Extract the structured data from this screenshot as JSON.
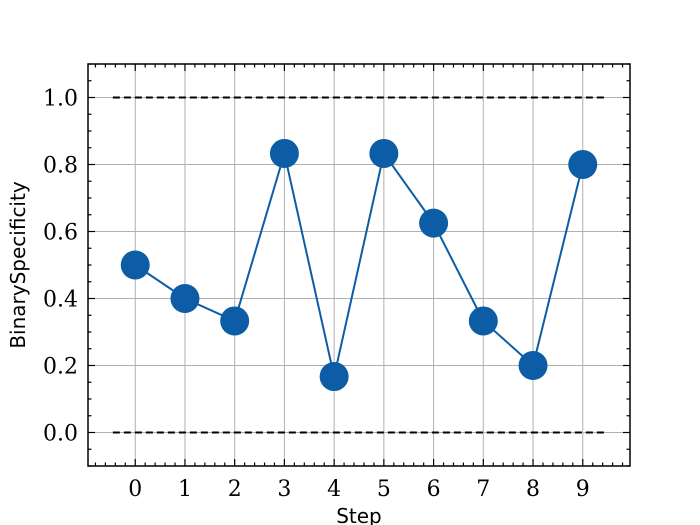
{
  "chart_data": {
    "type": "line",
    "title": "",
    "xlabel": "Step",
    "ylabel": "BinarySpecificity",
    "x": [
      0,
      1,
      2,
      3,
      4,
      5,
      6,
      7,
      8,
      9
    ],
    "series": [
      {
        "values": [
          0.5,
          0.4,
          0.333,
          0.833,
          0.167,
          0.833,
          0.625,
          0.333,
          0.2,
          0.8
        ],
        "color": "#0C5DA5",
        "marker": "circle"
      }
    ],
    "reference_lines": [
      {
        "y": 1.0,
        "style": "dashed",
        "color": "#000000"
      },
      {
        "y": 0.0,
        "style": "dashed",
        "color": "#000000"
      }
    ],
    "xticks": [
      0,
      1,
      2,
      3,
      4,
      5,
      6,
      7,
      8,
      9
    ],
    "yticks": [
      0.0,
      0.2,
      0.4,
      0.6,
      0.8,
      1.0
    ],
    "ytick_labels": [
      "0.0",
      "0.2",
      "0.4",
      "0.6",
      "0.8",
      "1.0"
    ],
    "xlim": [
      -0.95,
      9.95
    ],
    "ylim": [
      -0.1,
      1.1
    ],
    "grid": true,
    "grid_color": "#b0b0b0",
    "legend": "none"
  }
}
